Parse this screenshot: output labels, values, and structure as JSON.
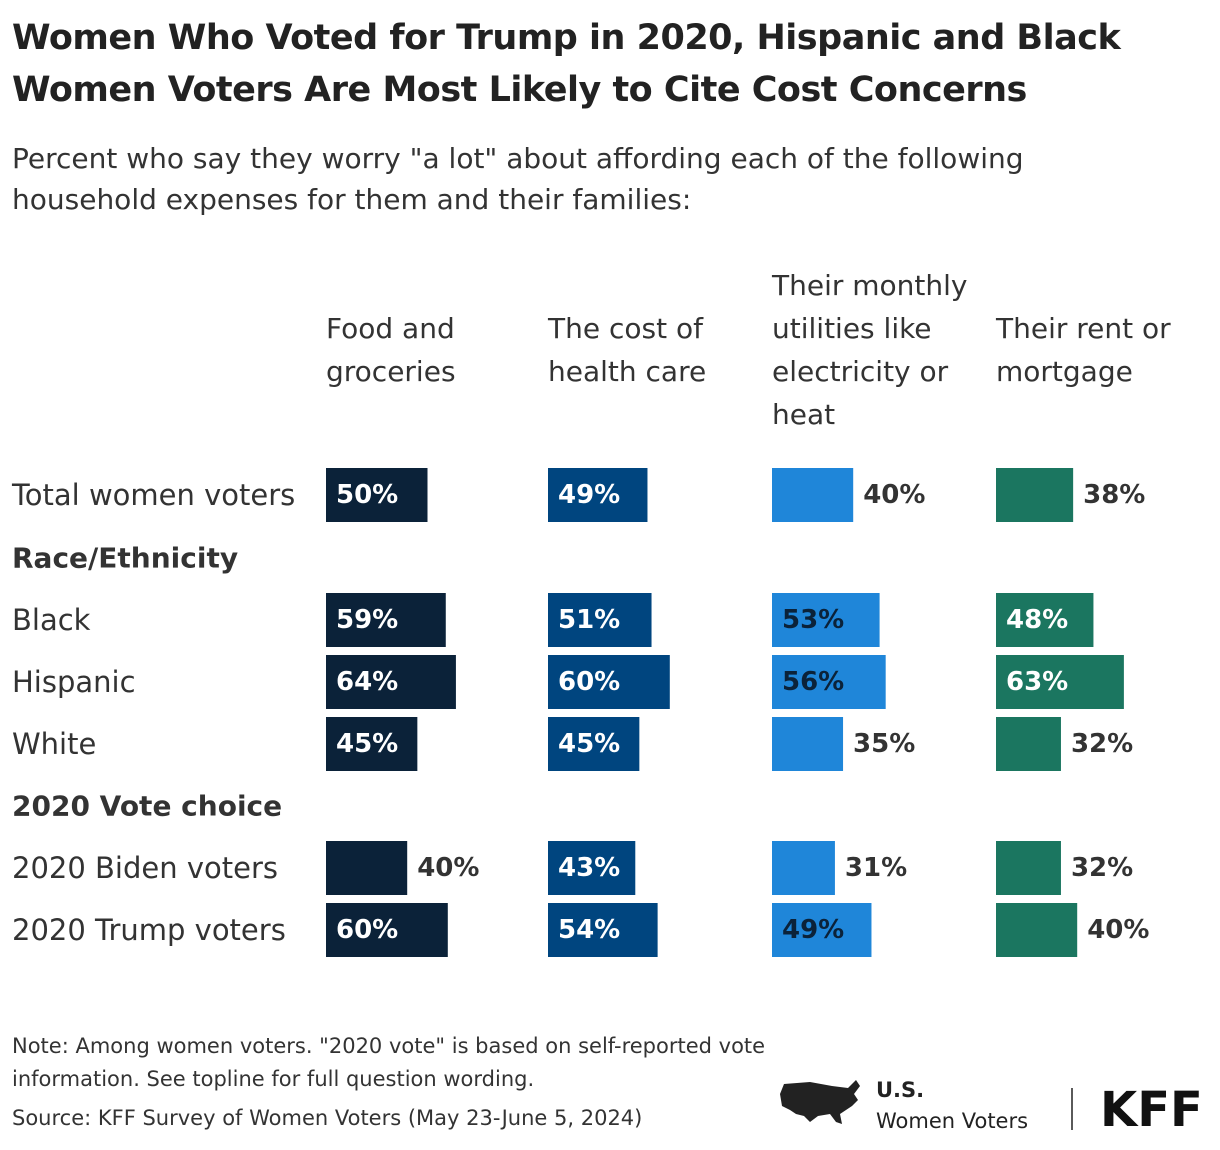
{
  "chart_data": {
    "type": "bar",
    "title": "Women Who Voted for Trump in 2020, Hispanic and Black Women Voters Are Most Likely to Cite Cost Concerns",
    "subtitle": "Percent who say they worry \"a lot\" about affording each of the following household expenses for them and their families:",
    "categories": [
      "Total women voters",
      "Race/Ethnicity",
      "Black",
      "Hispanic",
      "White",
      "2020 Vote choice",
      "2020 Biden voters",
      "2020 Trump voters"
    ],
    "series": [
      {
        "name": "Food and groceries",
        "color": "#0b2239",
        "label_color": "#ffffff",
        "values": [
          50,
          null,
          59,
          64,
          45,
          null,
          40,
          60
        ],
        "value_labels": [
          "50%",
          null,
          "59%",
          "64%",
          "45%",
          null,
          "40%",
          "60%"
        ]
      },
      {
        "name": "The cost of health care",
        "color": "#00457f",
        "label_color": "#ffffff",
        "values": [
          49,
          null,
          51,
          60,
          45,
          null,
          43,
          54
        ],
        "value_labels": [
          "49%",
          null,
          "51%",
          "60%",
          "45%",
          null,
          "43%",
          "54%"
        ]
      },
      {
        "name": "Their monthly utilities like electricity or heat",
        "color": "#1f86d9",
        "label_color": "#0b2239",
        "values": [
          40,
          null,
          53,
          56,
          35,
          null,
          31,
          49
        ],
        "value_labels": [
          "40%",
          null,
          "53%",
          "56%",
          "35%",
          null,
          "31%",
          "49%"
        ]
      },
      {
        "name": "Their rent or mortgage",
        "color": "#1b7660",
        "label_color": "#ffffff",
        "values": [
          38,
          null,
          48,
          63,
          32,
          null,
          32,
          40
        ],
        "value_labels": [
          "38%",
          null,
          "48%",
          "63%",
          "32%",
          null,
          "32%",
          "40%"
        ]
      }
    ],
    "note": "Note: Among women voters. \"2020 vote\" is based on self-reported vote information. See topline for full question wording.",
    "source": "Source: KFF Survey of Women Voters (May 23-June 5, 2024)",
    "logo_text": [
      "U.S.",
      "Women Voters"
    ],
    "brand": "KFF"
  }
}
